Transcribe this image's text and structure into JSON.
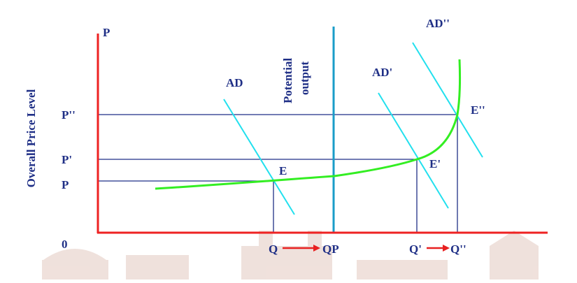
{
  "colors": {
    "axis": "#ee2222",
    "label": "#1f2f86",
    "ad_lines": "#22e0ee",
    "supply_curve": "#33ee22",
    "potential_line": "#1a9cc8",
    "guide_lines": "#1f2f86",
    "arrow": "#e82020",
    "watermark": "#e3c9c0"
  },
  "axes": {
    "y_title": "Overall Price Level",
    "y_symbol": "P",
    "origin": "0"
  },
  "price_levels": [
    "P''",
    "P'",
    "P"
  ],
  "quantity_labels": [
    "Q",
    "QP",
    "Q'",
    "Q''"
  ],
  "curves": {
    "ad": "AD",
    "ad_prime": "AD'",
    "ad_double_prime": "AD''",
    "potential_output": [
      "Potential",
      "output"
    ]
  },
  "equilibria": [
    "E",
    "E'",
    "E''"
  ],
  "watermark_icon": "campus-buildings-watermark-icon"
}
